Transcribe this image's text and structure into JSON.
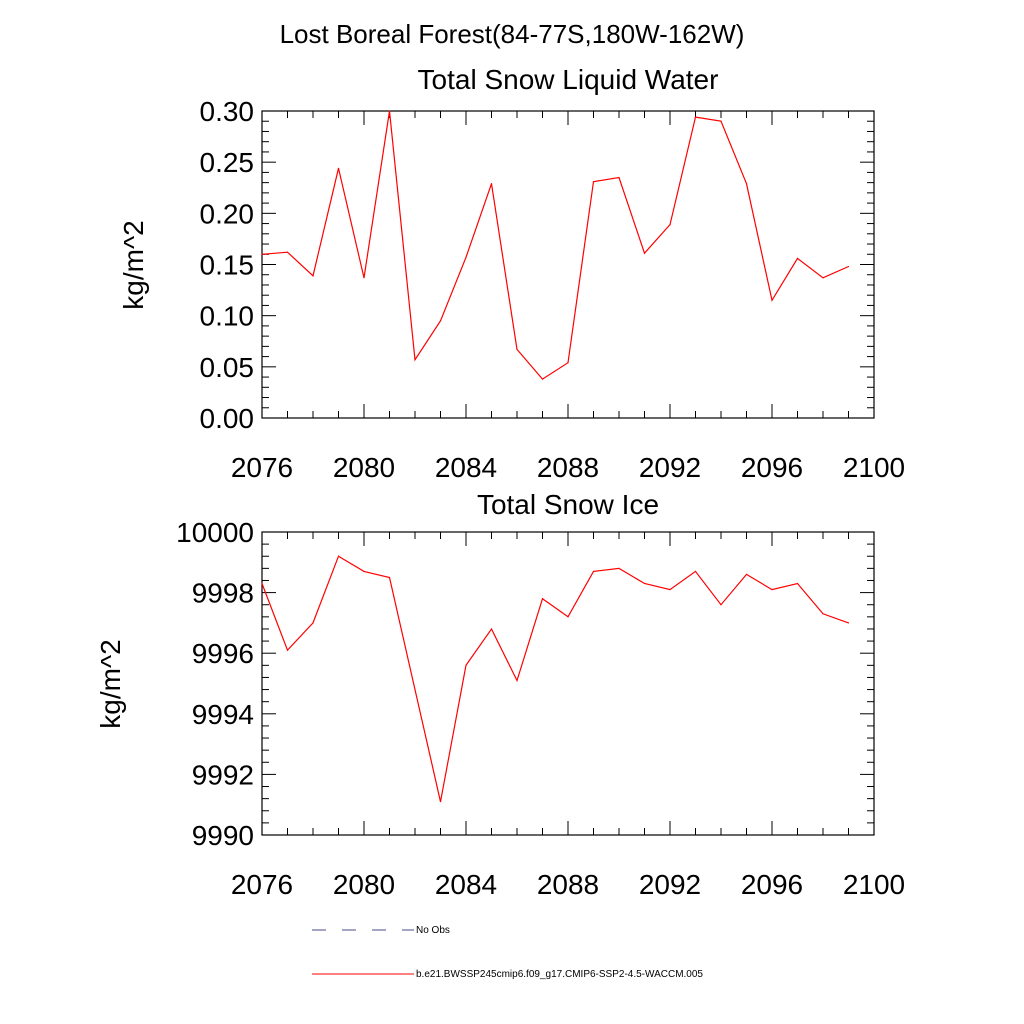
{
  "figure": {
    "suptitle": "Lost Boreal Forest(84-77S,180W-162W)"
  },
  "legend": {
    "obs_label": "No Obs",
    "obs_color": "#4a4a8a",
    "model_label": "b.e21.BWSSP245cmip6.f09_g17.CMIP6-SSP2-4.5-WACCM.005",
    "model_color": "#ff0000"
  },
  "chart_data": [
    {
      "type": "line",
      "title": "Total Snow Liquid Water",
      "xlabel": "",
      "ylabel": "kg/m^2",
      "xlim": [
        2076,
        2100
      ],
      "ylim": [
        0,
        0.3
      ],
      "xticks": [
        2076,
        2080,
        2084,
        2088,
        2092,
        2096,
        2100
      ],
      "xtick_labels": [
        "2076",
        "2080",
        "2084",
        "2088",
        "2092",
        "2096",
        "2100"
      ],
      "yticks": [
        0,
        0.05,
        0.1,
        0.15,
        0.2,
        0.25,
        0.3
      ],
      "ytick_labels": [
        "0.00",
        "0.05",
        "0.10",
        "0.15",
        "0.20",
        "0.25",
        "0.30"
      ],
      "grid": false,
      "series": [
        {
          "color": "#ff0000",
          "x": [
            2076,
            2077,
            2078,
            2079,
            2080,
            2081,
            2082,
            2083,
            2084,
            2085,
            2086,
            2087,
            2088,
            2089,
            2090,
            2091,
            2092,
            2093,
            2094,
            2095,
            2096,
            2097,
            2098,
            2099
          ],
          "values": [
            0.16,
            0.162,
            0.139,
            0.244,
            0.137,
            0.3,
            0.057,
            0.095,
            0.157,
            0.229,
            0.067,
            0.038,
            0.054,
            0.231,
            0.235,
            0.161,
            0.189,
            0.294,
            0.29,
            0.229,
            0.115,
            0.156,
            0.137,
            0.148
          ]
        }
      ]
    },
    {
      "type": "line",
      "title": "Total Snow Ice",
      "xlabel": "",
      "ylabel": "kg/m^2",
      "xlim": [
        2076,
        2100
      ],
      "ylim": [
        9990,
        10000
      ],
      "xticks": [
        2076,
        2080,
        2084,
        2088,
        2092,
        2096,
        2100
      ],
      "xtick_labels": [
        "2076",
        "2080",
        "2084",
        "2088",
        "2092",
        "2096",
        "2100"
      ],
      "yticks": [
        9990,
        9992,
        9994,
        9996,
        9998,
        10000
      ],
      "ytick_labels": [
        "9990",
        "9992",
        "9994",
        "9996",
        "9998",
        "10000"
      ],
      "grid": false,
      "series": [
        {
          "color": "#ff0000",
          "x": [
            2076,
            2077,
            2078,
            2079,
            2080,
            2081,
            2082,
            2083,
            2084,
            2085,
            2086,
            2087,
            2088,
            2089,
            2090,
            2091,
            2092,
            2093,
            2094,
            2095,
            2096,
            2097,
            2098,
            2099
          ],
          "values": [
            9998.3,
            9996.1,
            9997.0,
            9999.2,
            9998.7,
            9998.5,
            9994.8,
            9991.1,
            9995.6,
            9996.8,
            9995.1,
            9997.8,
            9997.2,
            9998.7,
            9998.8,
            9998.3,
            9998.1,
            9998.7,
            9997.6,
            9998.6,
            9998.1,
            9998.3,
            9997.3,
            9997.0
          ]
        }
      ]
    }
  ]
}
